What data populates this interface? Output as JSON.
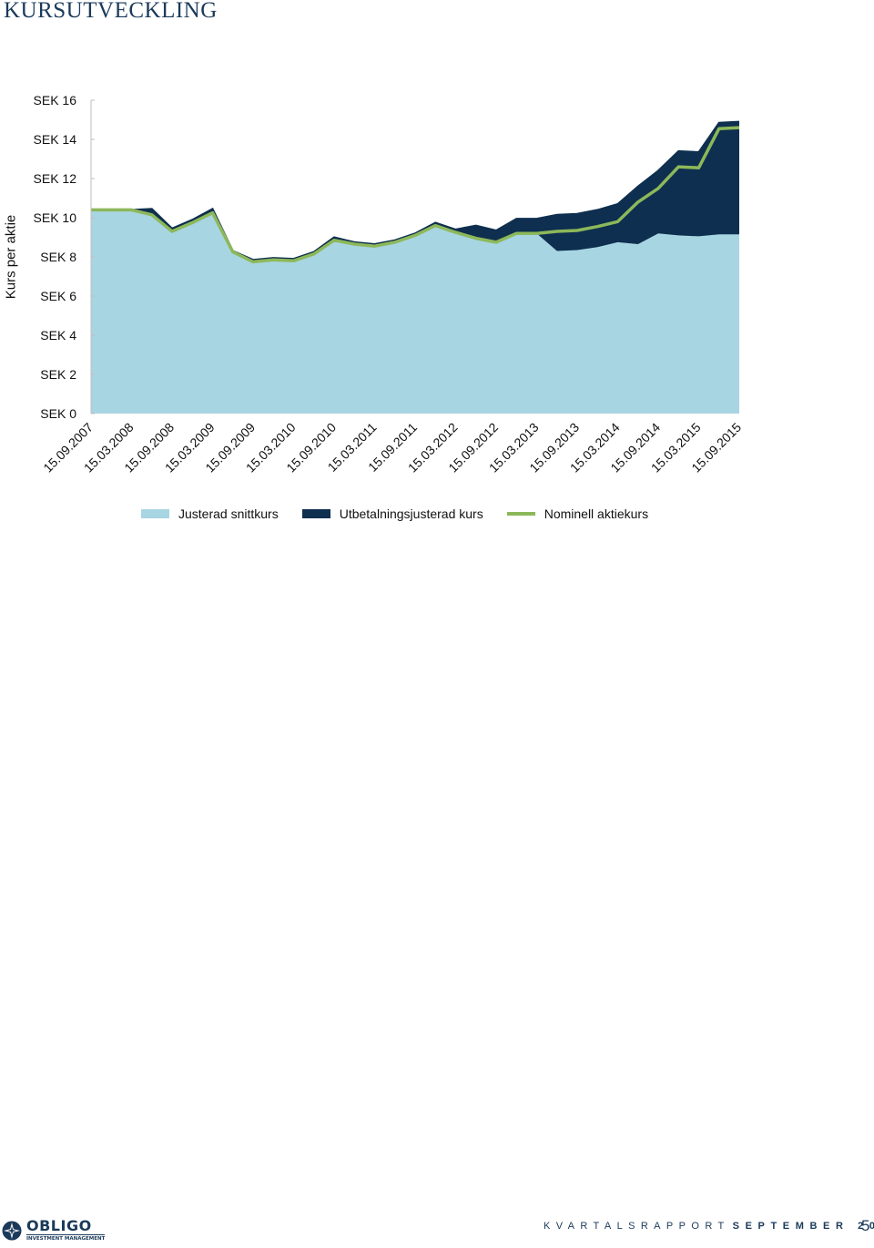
{
  "page": {
    "title": "KURSUTVECKLING",
    "footer_brand": "OBLIGO",
    "footer_brand_sub": "INVESTMENT MANAGEMENT",
    "footer_report_light": "KVARTALSRAPPORT",
    "footer_report_bold": "SEPTEMBER 2015",
    "page_number": "5"
  },
  "chart_data": {
    "type": "area",
    "title": "",
    "xlabel": "",
    "ylabel": "Kurs per aktie",
    "y_ticks": [
      "SEK 0",
      "SEK 2",
      "SEK 4",
      "SEK 6",
      "SEK 8",
      "SEK 10",
      "SEK 12",
      "SEK 14",
      "SEK 16"
    ],
    "ylim": [
      0,
      16
    ],
    "x_tick_labels": [
      "15.09.2007",
      "15.03.2008",
      "15.09.2008",
      "15.03.2009",
      "15.09.2009",
      "15.03.2010",
      "15.09.2010",
      "15.03.2011",
      "15.09.2011",
      "15.03.2012",
      "15.09.2012",
      "15.03.2013",
      "15.09.2013",
      "15.03.2014",
      "15.09.2014",
      "15.03.2015",
      "15.09.2015"
    ],
    "x": [
      "15.09.2007",
      "15.12.2007",
      "15.03.2008",
      "15.06.2008",
      "15.09.2008",
      "15.12.2008",
      "15.03.2009",
      "15.06.2009",
      "15.09.2009",
      "15.12.2009",
      "15.03.2010",
      "15.06.2010",
      "15.09.2010",
      "15.12.2010",
      "15.03.2011",
      "15.06.2011",
      "15.09.2011",
      "15.12.2011",
      "15.03.2012",
      "15.06.2012",
      "15.09.2012",
      "15.12.2012",
      "15.03.2013",
      "15.06.2013",
      "15.09.2013",
      "15.12.2013",
      "15.03.2014",
      "15.06.2014",
      "15.09.2014",
      "15.12.2014",
      "15.03.2015",
      "15.06.2015",
      "15.09.2015"
    ],
    "series": [
      {
        "name": "Justerad snittkurs",
        "color": "#a8d5e2",
        "values": [
          10.4,
          10.4,
          10.4,
          10.15,
          9.3,
          9.75,
          10.25,
          8.25,
          7.75,
          7.85,
          7.8,
          8.15,
          8.85,
          8.65,
          8.55,
          8.75,
          9.1,
          9.6,
          9.25,
          8.95,
          8.75,
          9.2,
          9.2,
          8.3,
          8.35,
          8.5,
          8.75,
          8.65,
          9.2,
          9.1,
          9.05,
          9.15,
          9.15
        ]
      },
      {
        "name": "Utbetalningsjusterad kurs",
        "color": "#0e2f4f",
        "values": [
          10.4,
          10.4,
          10.4,
          10.45,
          9.45,
          9.9,
          10.45,
          8.3,
          7.85,
          7.95,
          7.9,
          8.25,
          9.0,
          8.75,
          8.65,
          8.85,
          9.2,
          9.75,
          9.4,
          9.6,
          9.35,
          9.95,
          9.95,
          10.15,
          10.2,
          10.4,
          10.7,
          11.6,
          12.4,
          13.4,
          13.35,
          14.85,
          14.9
        ]
      },
      {
        "name": "Nominell aktiekurs",
        "color": "#8db85a",
        "values": [
          10.4,
          10.4,
          10.4,
          10.15,
          9.3,
          9.75,
          10.25,
          8.25,
          7.75,
          7.85,
          7.8,
          8.15,
          8.85,
          8.65,
          8.55,
          8.75,
          9.1,
          9.6,
          9.25,
          8.95,
          8.75,
          9.2,
          9.2,
          9.3,
          9.35,
          9.55,
          9.8,
          10.8,
          11.5,
          12.6,
          12.55,
          14.55,
          14.6
        ]
      }
    ],
    "grid": false,
    "legend": "bottom"
  }
}
